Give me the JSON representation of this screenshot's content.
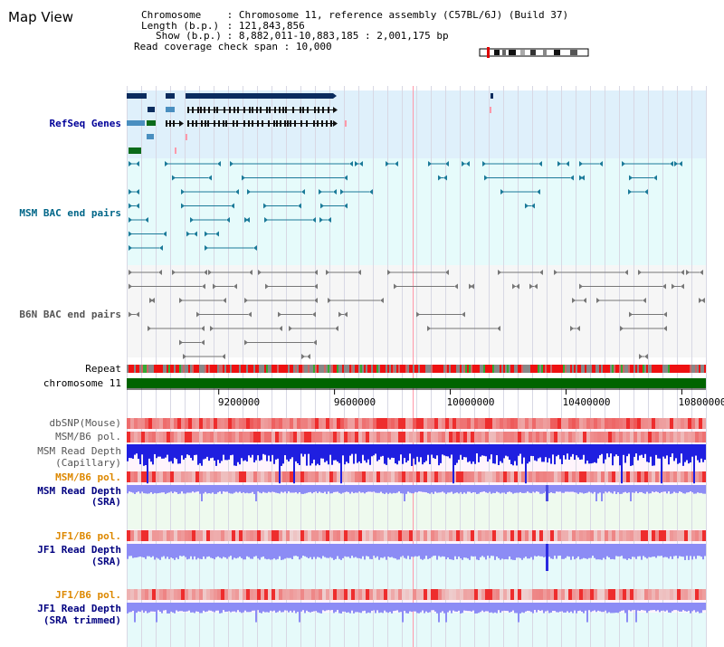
{
  "title": "Map View",
  "header": {
    "chromosome_key": "Chromosome",
    "chromosome_value": "Chromosome 11, reference assembly (C57BL/6J) (Build 37)",
    "length_key": "Length (b.p.)",
    "length_value": "121,843,856",
    "show_key": "Show (b.p.)",
    "show_value": "8,882,011-10,883,185 : 2,001,175 bp",
    "span_key": "Read coverage check span",
    "span_value": "10,000"
  },
  "tracks": {
    "refseq": "RefSeq Genes",
    "msm_bac": "MSM BAC end pairs",
    "b6n_bac": "B6N BAC end pairs",
    "repeat": "Repeat",
    "chromosome": "chromosome 11",
    "dbsnp": "dbSNP(Mouse)",
    "msm_b6_pol_1": "MSM/B6 pol.",
    "msm_depth_cap_1": "MSM Read Depth",
    "msm_depth_cap_2": "(Capillary)",
    "msm_b6_pol_2": "MSM/B6 pol.",
    "msm_depth_sra_1": "MSM Read Depth",
    "msm_depth_sra_2": "(SRA)",
    "jf1_b6_pol_1": "JF1/B6 pol.",
    "jf1_depth_sra_1": "JF1 Read Depth",
    "jf1_depth_sra_2": "(SRA)",
    "jf1_b6_pol_2": "JF1/B6 pol.",
    "jf1_depth_trim_1": "JF1 Read Depth",
    "jf1_depth_trim_2": "(SRA trimmed)"
  },
  "axis": {
    "start": 8882011,
    "end": 10883185,
    "ticks": [
      {
        "value": 9200000,
        "label": "9200000"
      },
      {
        "value": 9600000,
        "label": "9600000"
      },
      {
        "value": 10000000,
        "label": "10000000"
      },
      {
        "value": 10400000,
        "label": "10400000"
      },
      {
        "value": 10800000,
        "label": "10800000"
      }
    ]
  },
  "colors": {
    "refseq_bg": "#dff0fb",
    "msm_bg": "#e6fbfb",
    "b6n_bg": "#f6f6f6",
    "gene_dark": "#0b2c5e",
    "gene_mid": "#4a8fc0",
    "gene_green": "#0b6b1a",
    "msm_pair": "#1b7a99",
    "b6n_pair": "#777777",
    "chromosome_bar": "#006400",
    "snp_red": "#ee3333",
    "depth_blue": "#1f1fe0",
    "depth_light": "#8c8cf5",
    "highlight": "#ff99aa"
  }
}
